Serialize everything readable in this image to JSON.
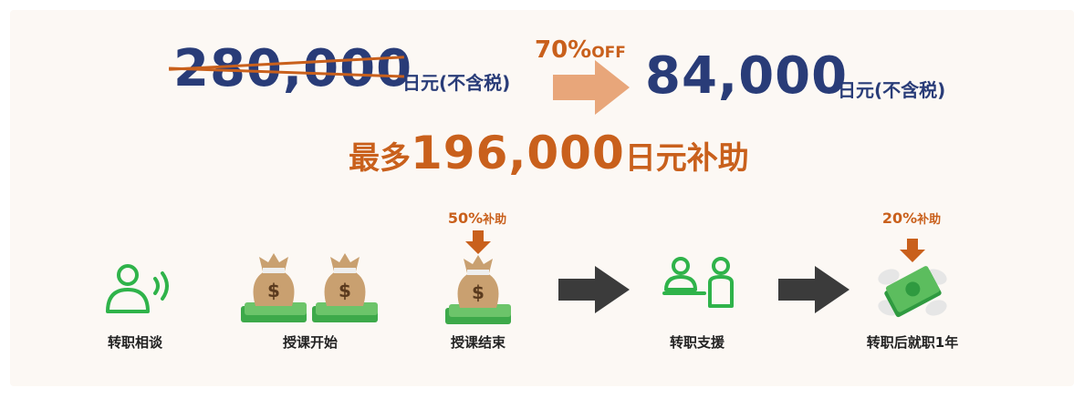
{
  "pricing": {
    "original_price": "280,000",
    "original_unit": "日元(不含税)",
    "discount_percent": "70%",
    "discount_suffix": "OFF",
    "new_price": "84,000",
    "new_unit": "日元(不含税)"
  },
  "subsidy": {
    "prefix": "最多",
    "amount": "196,000",
    "suffix": "日元补助"
  },
  "steps": [
    {
      "label": "转职相谈",
      "icon": "consultation-icon"
    },
    {
      "label": "授课开始",
      "icon": "money-bags-icon"
    },
    {
      "label": "授课结束",
      "icon": "money-bag-icon",
      "badge_percent": "50%",
      "badge_suffix": "补助"
    },
    {
      "label": "转职支援",
      "icon": "support-people-icon"
    },
    {
      "label": "转职后就职1年",
      "icon": "flying-money-icon",
      "badge_percent": "20%",
      "badge_suffix": "补助"
    }
  ],
  "colors": {
    "navy": "#293c78",
    "orange": "#c9601c",
    "peach_arrow": "#e8a67a",
    "green": "#2fb34a",
    "dark_arrow": "#3b3b3b",
    "background": "#fcf8f4"
  }
}
